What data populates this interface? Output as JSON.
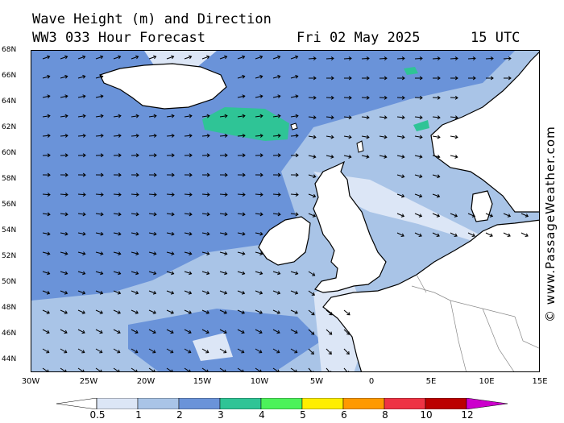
{
  "header": {
    "title": "Wave Height (m) and Direction",
    "model_line": "WW3 033 Hour Forecast",
    "date": "Fri 02 May 2025",
    "time": "15 UTC"
  },
  "credit": "© www.PassageWeather.com",
  "lat_labels": [
    "68N",
    "66N",
    "64N",
    "62N",
    "60N",
    "58N",
    "56N",
    "54N",
    "52N",
    "50N",
    "48N",
    "46N",
    "44N"
  ],
  "lon_labels": [
    "30W",
    "25W",
    "20W",
    "15W",
    "10W",
    "5W",
    "0",
    "5E",
    "10E",
    "15E"
  ],
  "legend": {
    "colors": [
      "#ffffff",
      "#dce6f6",
      "#a9c4e7",
      "#6a93d9",
      "#2fc496",
      "#4cf25a",
      "#ffee00",
      "#ff9900",
      "#ee3344",
      "#bb0000",
      "#cc00cc"
    ],
    "labels": [
      "0.5",
      "1",
      "2",
      "3",
      "4",
      "5",
      "6",
      "8",
      "10",
      "12"
    ]
  },
  "map_colors": {
    "land": "#ffffff",
    "wave_0_5_1": "#dce6f6",
    "wave_1_2": "#a9c4e7",
    "wave_2_3": "#6a93d9",
    "wave_3_4": "#2fc496"
  }
}
